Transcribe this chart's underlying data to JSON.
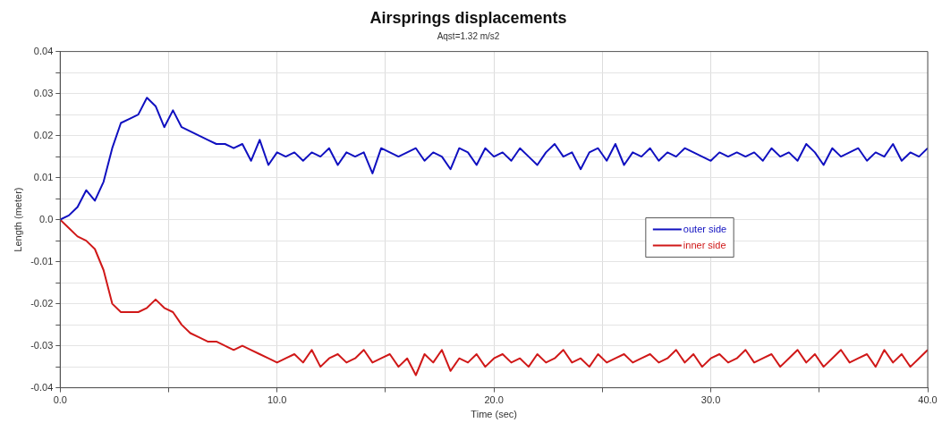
{
  "chart_data": {
    "type": "line",
    "title": "Airsprings displacements",
    "subtitle": "Aqst=1.32 m/s2",
    "xlabel": "Time (sec)",
    "ylabel": "Length (meter)",
    "x": [
      0,
      0.4,
      0.8,
      1.2,
      1.6,
      2,
      2.4,
      2.8,
      3.2,
      3.6,
      4,
      4.4,
      4.8,
      5.2,
      5.6,
      6,
      6.4,
      6.8,
      7.2,
      7.6,
      8,
      8.4,
      8.8,
      9.2,
      9.6,
      10,
      10.4,
      10.8,
      11.2,
      11.6,
      12,
      12.4,
      12.8,
      13.2,
      13.6,
      14,
      14.4,
      14.8,
      15.2,
      15.6,
      16,
      16.4,
      16.8,
      17.2,
      17.6,
      18,
      18.4,
      18.8,
      19.2,
      19.6,
      20,
      20.4,
      20.8,
      21.2,
      21.6,
      22,
      22.4,
      22.8,
      23.2,
      23.6,
      24,
      24.4,
      24.8,
      25.2,
      25.6,
      26,
      26.4,
      26.8,
      27.2,
      27.6,
      28,
      28.4,
      28.8,
      29.2,
      29.6,
      30,
      30.4,
      30.8,
      31.2,
      31.6,
      32,
      32.4,
      32.8,
      33.2,
      33.6,
      34,
      34.4,
      34.8,
      35.2,
      35.6,
      36,
      36.4,
      36.8,
      37.2,
      37.6,
      38,
      38.4,
      38.8,
      39.2,
      39.6,
      40
    ],
    "series": [
      {
        "name": "outer side",
        "color": "#1010c0",
        "values": [
          0,
          0.001,
          0.003,
          0.007,
          0.0045,
          0.009,
          0.017,
          0.023,
          0.024,
          0.025,
          0.029,
          0.027,
          0.022,
          0.026,
          0.022,
          0.021,
          0.02,
          0.019,
          0.018,
          0.018,
          0.017,
          0.018,
          0.014,
          0.019,
          0.013,
          0.016,
          0.015,
          0.016,
          0.014,
          0.016,
          0.015,
          0.017,
          0.013,
          0.016,
          0.015,
          0.016,
          0.011,
          0.017,
          0.016,
          0.015,
          0.016,
          0.017,
          0.014,
          0.016,
          0.015,
          0.012,
          0.017,
          0.016,
          0.013,
          0.017,
          0.015,
          0.016,
          0.014,
          0.017,
          0.015,
          0.013,
          0.016,
          0.018,
          0.015,
          0.016,
          0.012,
          0.016,
          0.017,
          0.014,
          0.018,
          0.013,
          0.016,
          0.015,
          0.017,
          0.014,
          0.016,
          0.015,
          0.017,
          0.016,
          0.015,
          0.014,
          0.016,
          0.015,
          0.016,
          0.015,
          0.016,
          0.014,
          0.017,
          0.015,
          0.016,
          0.014,
          0.018,
          0.016,
          0.013,
          0.017,
          0.015,
          0.016,
          0.017,
          0.014,
          0.016,
          0.015,
          0.018,
          0.014,
          0.016,
          0.015,
          0.017
        ]
      },
      {
        "name": "inner side",
        "color": "#d01818",
        "values": [
          0,
          -0.002,
          -0.004,
          -0.005,
          -0.007,
          -0.012,
          -0.02,
          -0.022,
          -0.022,
          -0.022,
          -0.021,
          -0.019,
          -0.021,
          -0.022,
          -0.025,
          -0.027,
          -0.028,
          -0.029,
          -0.029,
          -0.03,
          -0.031,
          -0.03,
          -0.031,
          -0.032,
          -0.033,
          -0.034,
          -0.033,
          -0.032,
          -0.034,
          -0.031,
          -0.035,
          -0.033,
          -0.032,
          -0.034,
          -0.033,
          -0.031,
          -0.034,
          -0.033,
          -0.032,
          -0.035,
          -0.033,
          -0.037,
          -0.032,
          -0.034,
          -0.031,
          -0.036,
          -0.033,
          -0.034,
          -0.032,
          -0.035,
          -0.033,
          -0.032,
          -0.034,
          -0.033,
          -0.035,
          -0.032,
          -0.034,
          -0.033,
          -0.031,
          -0.034,
          -0.033,
          -0.035,
          -0.032,
          -0.034,
          -0.033,
          -0.032,
          -0.034,
          -0.033,
          -0.032,
          -0.034,
          -0.033,
          -0.031,
          -0.034,
          -0.032,
          -0.035,
          -0.033,
          -0.032,
          -0.034,
          -0.033,
          -0.031,
          -0.034,
          -0.033,
          -0.032,
          -0.035,
          -0.033,
          -0.031,
          -0.034,
          -0.032,
          -0.035,
          -0.033,
          -0.031,
          -0.034,
          -0.033,
          -0.032,
          -0.035,
          -0.031,
          -0.034,
          -0.032,
          -0.035,
          -0.033,
          -0.031
        ]
      }
    ],
    "xlim": [
      0,
      40
    ],
    "xticks": [
      {
        "value": 0,
        "label": "0.0"
      },
      {
        "value": 5,
        "label": null
      },
      {
        "value": 10,
        "label": "10.0"
      },
      {
        "value": 15,
        "label": null
      },
      {
        "value": 20,
        "label": "20.0"
      },
      {
        "value": 25,
        "label": null
      },
      {
        "value": 30,
        "label": "30.0"
      },
      {
        "value": 35,
        "label": null
      },
      {
        "value": 40,
        "label": "40.0"
      }
    ],
    "ylim": [
      -0.04,
      0.04
    ],
    "yticks": [
      -0.04,
      {
        "value": -0.035,
        "label": null
      },
      -0.03,
      {
        "value": -0.025,
        "label": null
      },
      -0.02,
      {
        "value": -0.015,
        "label": null
      },
      -0.01,
      {
        "value": -0.005,
        "label": null
      },
      {
        "value": 0,
        "label": "0.0"
      },
      {
        "value": 0.005,
        "label": null
      },
      0.01,
      {
        "value": 0.015,
        "label": null
      },
      0.02,
      {
        "value": 0.025,
        "label": null
      },
      0.03,
      {
        "value": 0.035,
        "label": null
      },
      0.04
    ],
    "grid": true,
    "legend": "right",
    "marker": "none",
    "line_style": "solid"
  }
}
